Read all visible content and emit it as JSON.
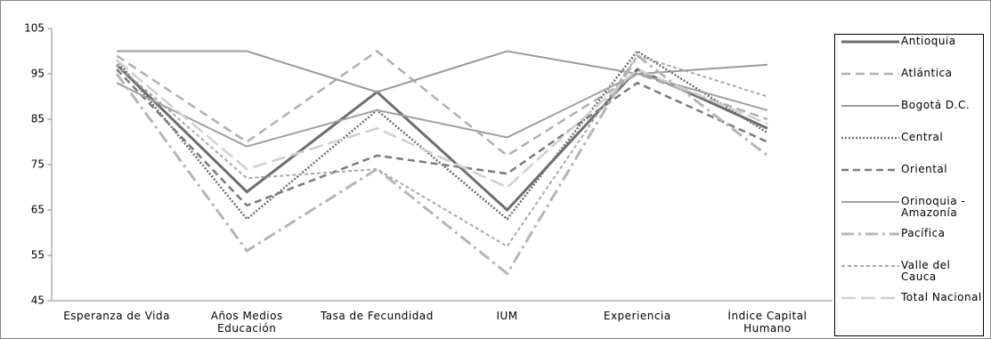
{
  "chart_data": {
    "type": "line",
    "categories": [
      "Esperanza de Vida",
      "Años Medios Educación",
      "Tasa de Fecundidad",
      "IUM",
      "Experiencia",
      "Índice Capital Humano"
    ],
    "ylim": [
      45,
      105
    ],
    "yticks": [
      45,
      55,
      65,
      75,
      85,
      95,
      105
    ],
    "series": [
      {
        "name": "Antioquia",
        "color": "#6e6e6e",
        "dash": "none",
        "width": 3,
        "values": [
          97,
          69,
          91,
          65,
          96,
          83
        ]
      },
      {
        "name": "Atlántica",
        "color": "#b0b0b0",
        "dash": "10,6",
        "width": 2.5,
        "values": [
          99,
          80,
          100,
          77,
          95,
          85
        ]
      },
      {
        "name": "Bogotá D.C.",
        "color": "#9a9a9a",
        "dash": "none",
        "width": 2,
        "values": [
          100,
          100,
          91,
          100,
          95,
          97
        ]
      },
      {
        "name": "Central",
        "color": "#6e6e6e",
        "dash": "2,2",
        "width": 2.5,
        "values": [
          98,
          63,
          87,
          63,
          100,
          82
        ]
      },
      {
        "name": "Oriental",
        "color": "#7a7a7a",
        "dash": "8,5",
        "width": 2.5,
        "values": [
          96,
          66,
          77,
          73,
          93,
          80
        ]
      },
      {
        "name": "Orinoquia - Amazonía",
        "color": "#a0a0a0",
        "dash": "none",
        "width": 2,
        "values": [
          93,
          79,
          87,
          81,
          95,
          87
        ]
      },
      {
        "name": "Pacífica",
        "color": "#b5b5b5",
        "dash": "14,5,3,5",
        "width": 3,
        "values": [
          95,
          56,
          74,
          51,
          99,
          77
        ]
      },
      {
        "name": "Valle del Cauca",
        "color": "#a8a8a8",
        "dash": "4,3",
        "width": 2,
        "values": [
          97,
          72,
          74,
          57,
          99,
          90
        ]
      },
      {
        "name": "Total Nacional",
        "color": "#cfcfcf",
        "dash": "16,6",
        "width": 2.5,
        "values": [
          98,
          74,
          83,
          70,
          96,
          84
        ]
      }
    ]
  }
}
